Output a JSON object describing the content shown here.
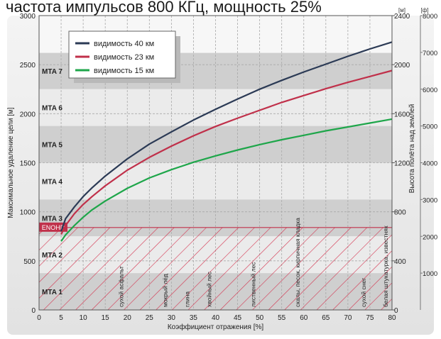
{
  "chart_data": {
    "type": "line",
    "title": "частота импульсов 800 КГц, мощность 25%",
    "xlabel": "Коэффициент отражения [%]",
    "ylabel": "Максимальное удаление цели [м]",
    "y2label": "Высота полёта над землей",
    "y2unit": "[м]",
    "y3unit": "[ф]",
    "xlim": [
      0,
      80
    ],
    "ylim": [
      0,
      3000
    ],
    "x_ticks": [
      "0",
      "5",
      "10",
      "15",
      "20",
      "25",
      "30",
      "35",
      "40",
      "45",
      "50",
      "55",
      "60",
      "65",
      "70",
      "75",
      "80"
    ],
    "y_ticks": [
      "0",
      "500",
      "1000",
      "1500",
      "2000",
      "2500",
      "3000"
    ],
    "y2_ticks": [
      "0",
      "400",
      "800",
      "1200",
      "1600",
      "2000",
      "2400"
    ],
    "y3_ticks": [
      "1000",
      "2000",
      "3000",
      "4000",
      "5000",
      "6000",
      "7000",
      "8000"
    ],
    "series": [
      {
        "name": "видимость  40  км",
        "color": "#2b3a55",
        "x": [
          5,
          6,
          8,
          10,
          12,
          15,
          20,
          25,
          30,
          35,
          40,
          45,
          50,
          55,
          60,
          65,
          70,
          75,
          80
        ],
        "y": [
          800,
          930,
          1050,
          1155,
          1245,
          1365,
          1540,
          1690,
          1815,
          1935,
          2045,
          2150,
          2250,
          2340,
          2425,
          2505,
          2585,
          2660,
          2730
        ]
      },
      {
        "name": "видимость  23  км",
        "color": "#c0304a",
        "x": [
          5,
          6,
          8,
          10,
          12,
          15,
          20,
          25,
          30,
          35,
          40,
          45,
          50,
          55,
          60,
          65,
          70,
          75,
          80
        ],
        "y": [
          770,
          860,
          980,
          1075,
          1155,
          1265,
          1425,
          1555,
          1670,
          1775,
          1870,
          1955,
          2035,
          2115,
          2185,
          2255,
          2320,
          2380,
          2440
        ]
      },
      {
        "name": "видимость  15  км",
        "color": "#1ea64a",
        "x": [
          5,
          6,
          8,
          10,
          12,
          15,
          20,
          25,
          30,
          35,
          40,
          45,
          50,
          55,
          60,
          65,
          70,
          75,
          80
        ],
        "y": [
          700,
          765,
          860,
          945,
          1020,
          1110,
          1240,
          1345,
          1430,
          1505,
          1570,
          1630,
          1685,
          1735,
          1780,
          1825,
          1865,
          1905,
          1945
        ]
      }
    ],
    "mta_zones": [
      {
        "label": "MTA 7",
        "y0": 2250,
        "y1": 2620
      },
      {
        "label": "MTA 6",
        "y0": 1875,
        "y1": 2250
      },
      {
        "label": "MTA 5",
        "y0": 1500,
        "y1": 1875
      },
      {
        "label": "MTA 4",
        "y0": 1125,
        "y1": 1500
      },
      {
        "label": "MTA 3",
        "y0": 750,
        "y1": 1125
      },
      {
        "label": "MTA 2",
        "y0": 375,
        "y1": 750
      },
      {
        "label": "MTA 1",
        "y0": 0,
        "y1": 375
      }
    ],
    "enohd": {
      "label": "ENOHD",
      "y": 840
    },
    "materials": [
      {
        "label": "сухой асфальт",
        "x": 20
      },
      {
        "label": "мокрый лёд",
        "x": 30
      },
      {
        "label": "глина",
        "x": 35
      },
      {
        "label": "хвойный лес",
        "x": 40
      },
      {
        "label": "лиственный лес",
        "x": 50
      },
      {
        "label": "скалы, песок, кирпичная кладка",
        "x": 60
      },
      {
        "label": "сухой снег",
        "x": 75
      },
      {
        "label": "белая штукатурка, известняк",
        "x": 80
      }
    ],
    "legend_position": "top-left",
    "grid": true
  }
}
